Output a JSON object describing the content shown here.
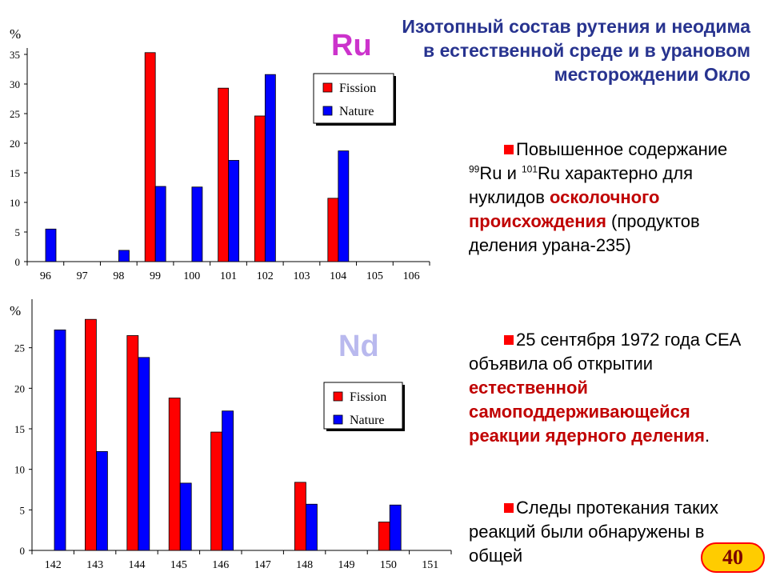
{
  "title": "Изотопный состав рутения и неодима в естественной среде и в урановом месторождении Окло",
  "bullets": [
    {
      "p1": "Повышенное содержание ",
      "sup1": "99",
      "p2": "Ru  и ",
      "sup2": "101",
      "p3": "Ru характерно для нуклидов ",
      "hl": "осколочного происхождения",
      "p4": " (продуктов деления урана-235)"
    },
    {
      "p1": "25 сентября 1972 года CEA объявила об открытии ",
      "hl": "естественной самоподдерживающейся реакции ядерного деления",
      "p2": "."
    },
    {
      "p1": "Следы протекания таких реакций были обнаружены в общей"
    }
  ],
  "page_number": "40",
  "colors": {
    "fission": "#ff0000",
    "nature": "#0000ff",
    "title": "#27338f",
    "highlight": "#c00000"
  },
  "chart_data": [
    {
      "type": "bar",
      "element_label": "Ru",
      "ylabel": "%",
      "categories": [
        "96",
        "97",
        "98",
        "99",
        "100",
        "101",
        "102",
        "103",
        "104",
        "105",
        "106"
      ],
      "series": [
        {
          "name": "Fission",
          "color": "#ff0000",
          "values": [
            0,
            0,
            0,
            35.3,
            0,
            29.3,
            24.6,
            0,
            10.7,
            0,
            0
          ]
        },
        {
          "name": "Nature",
          "color": "#0000ff",
          "values": [
            5.5,
            0,
            1.9,
            12.7,
            12.6,
            17.1,
            31.6,
            0,
            18.7,
            0,
            0
          ]
        }
      ],
      "ylim": [
        0,
        35
      ],
      "yticks": [
        "0",
        "5",
        "10",
        "15",
        "20",
        "25",
        "30",
        "35"
      ],
      "legend_position": "top-right",
      "grid": false
    },
    {
      "type": "bar",
      "element_label": "Nd",
      "ylabel": "%",
      "categories": [
        "142",
        "143",
        "144",
        "145",
        "146",
        "147",
        "148",
        "149",
        "150",
        "151"
      ],
      "series": [
        {
          "name": "Fission",
          "color": "#ff0000",
          "values": [
            0,
            28.5,
            26.5,
            18.8,
            14.6,
            0,
            8.4,
            0,
            3.5,
            0
          ]
        },
        {
          "name": "Nature",
          "color": "#0000ff",
          "values": [
            27.2,
            12.2,
            23.8,
            8.3,
            17.2,
            0,
            5.7,
            0,
            5.6,
            0
          ]
        }
      ],
      "ylim": [
        0,
        30
      ],
      "yticks": [
        "0",
        "5",
        "10",
        "15",
        "20",
        "25"
      ],
      "legend_position": "center-right",
      "grid": false
    }
  ]
}
